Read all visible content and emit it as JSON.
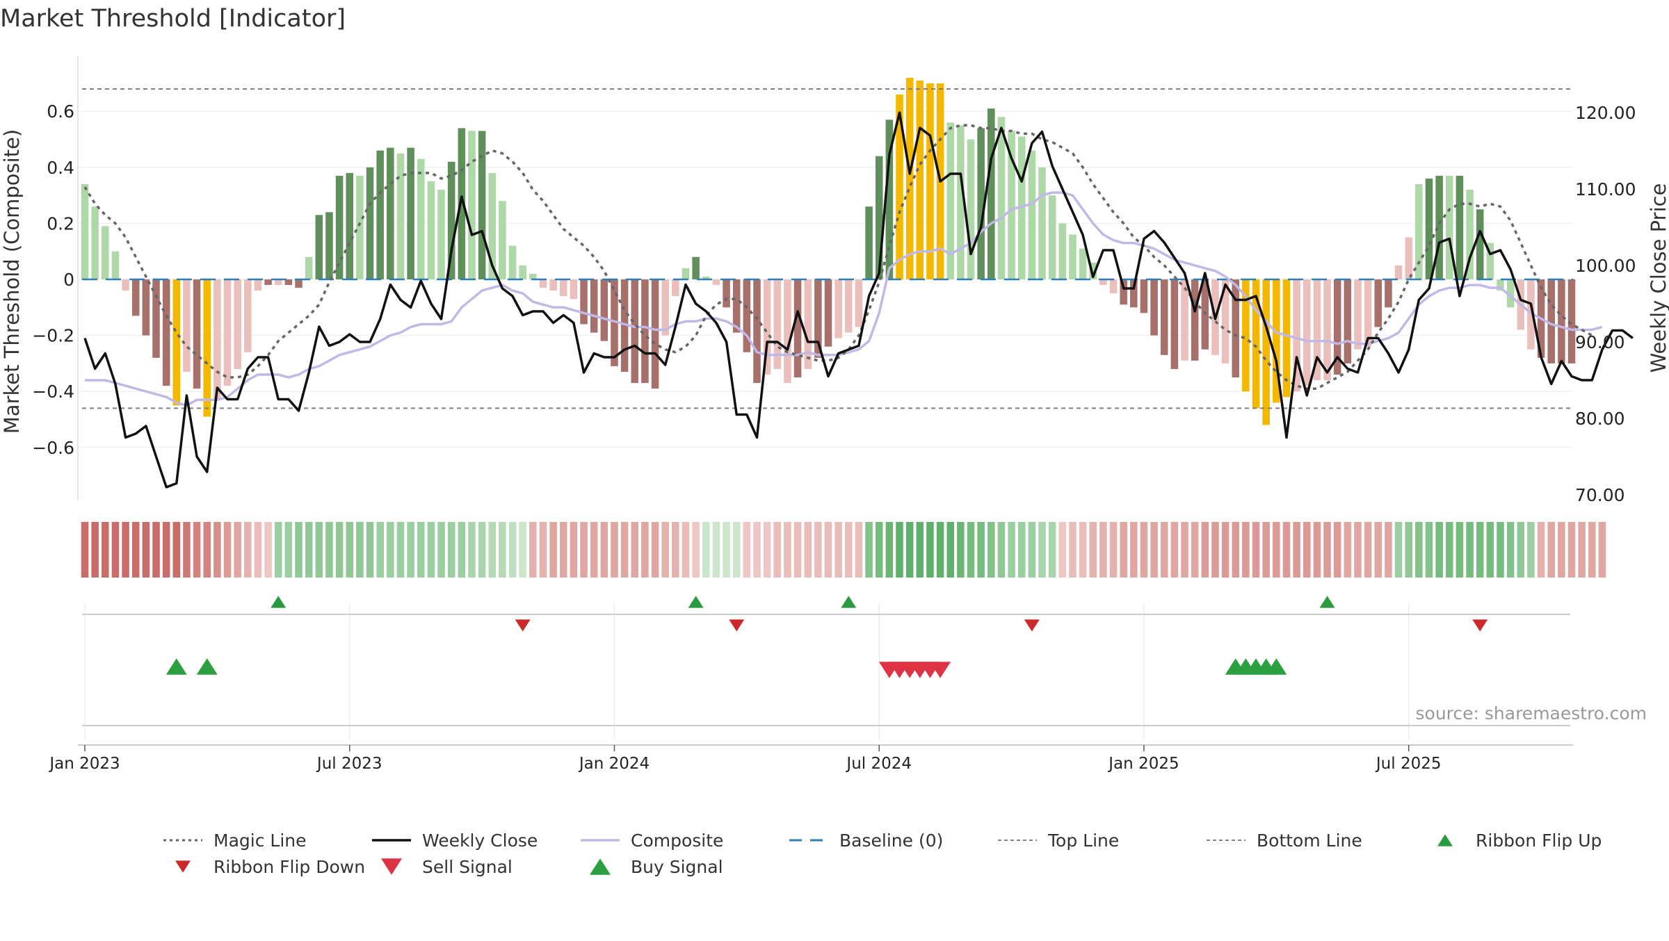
{
  "title": "Market Threshold [Indicator]",
  "source": "source: sharemaestro.com",
  "colors": {
    "dark_green": "#5f8f5a",
    "light_green": "#afd8a8",
    "dark_red": "#a8706b",
    "light_red": "#ebbfbb",
    "gold": "#f5b800",
    "weekly_close": "#111111",
    "composite": "#c0b8e6",
    "magic_line": "#666666",
    "baseline": "#2c7fb8",
    "threshold": "#808080",
    "buy": "#2ca040",
    "sell": "#dd3344",
    "flip_up": "#2a9a3e",
    "flip_down": "#cc2a2a"
  },
  "chart_data": {
    "type": "bar",
    "ylabel": "Market Threshold (Composite)",
    "y2label": "Weekly Close Price",
    "ylim": [
      -0.8,
      0.8
    ],
    "y2lim": [
      68,
      125
    ],
    "yticks": [
      0.6,
      0.4,
      0.2,
      0,
      -0.2,
      -0.4,
      -0.6
    ],
    "ytick_labels": [
      "0.6",
      "0.4",
      "0.2",
      "0",
      "−0.2",
      "−0.4",
      "−0.6"
    ],
    "y2ticks": [
      120,
      110,
      100,
      90,
      80,
      70
    ],
    "y2tick_labels": [
      "120.00",
      "110.00",
      "100.00",
      "90.00",
      "80.00",
      "70.00"
    ],
    "xticks": [
      0,
      26,
      52,
      78,
      104,
      130
    ],
    "xtick_labels": [
      "Jan 2023",
      "Jul 2023",
      "Jan 2024",
      "Jul 2024",
      "Jan 2025",
      "Jul 2025"
    ],
    "top_line": 0.68,
    "bottom_line": -0.46,
    "baseline": 0,
    "composite_bars": [
      0.34,
      0.26,
      0.19,
      0.1,
      -0.04,
      -0.13,
      -0.2,
      -0.28,
      -0.38,
      -0.45,
      -0.33,
      -0.39,
      -0.49,
      -0.43,
      -0.38,
      -0.32,
      -0.26,
      -0.04,
      -0.02,
      -0.02,
      -0.02,
      -0.03,
      0.08,
      0.23,
      0.24,
      0.37,
      0.38,
      0.37,
      0.4,
      0.46,
      0.47,
      0.45,
      0.47,
      0.43,
      0.35,
      0.32,
      0.42,
      0.54,
      0.53,
      0.53,
      0.38,
      0.28,
      0.12,
      0.05,
      0.02,
      -0.03,
      -0.04,
      -0.06,
      -0.07,
      -0.16,
      -0.19,
      -0.22,
      -0.31,
      -0.33,
      -0.37,
      -0.37,
      -0.39,
      -0.2,
      -0.06,
      0.04,
      0.08,
      0.01,
      -0.02,
      -0.1,
      -0.19,
      -0.26,
      -0.37,
      -0.34,
      -0.32,
      -0.37,
      -0.35,
      -0.32,
      -0.28,
      -0.24,
      -0.21,
      -0.19,
      -0.17,
      0.26,
      0.44,
      0.57,
      0.66,
      0.72,
      0.71,
      0.7,
      0.7,
      0.56,
      0.55,
      0.5,
      0.54,
      0.61,
      0.58,
      0.53,
      0.51,
      0.46,
      0.4,
      0.3,
      0.2,
      0.16,
      0.11,
      0.06,
      -0.02,
      -0.05,
      -0.09,
      -0.1,
      -0.12,
      -0.2,
      -0.27,
      -0.32,
      -0.29,
      -0.29,
      -0.25,
      -0.27,
      -0.3,
      -0.35,
      -0.4,
      -0.46,
      -0.52,
      -0.44,
      -0.42,
      -0.4,
      -0.38,
      -0.36,
      -0.36,
      -0.34,
      -0.3,
      -0.25,
      -0.24,
      -0.17,
      -0.1,
      0.05,
      0.15,
      0.34,
      0.36,
      0.37,
      0.37,
      0.37,
      0.32,
      0.25,
      0.13,
      -0.04,
      -0.1,
      -0.18,
      -0.25,
      -0.28,
      -0.3,
      -0.3,
      -0.3
    ],
    "bar_colors": [
      "lg",
      "lg",
      "lg",
      "lg",
      "lr",
      "dr",
      "dr",
      "dr",
      "dr",
      "gold",
      "lr",
      "dr",
      "gold",
      "lr",
      "lr",
      "lr",
      "lr",
      "lr",
      "dr",
      "lr",
      "dr",
      "dr",
      "lg",
      "dg",
      "dg",
      "dg",
      "dg",
      "lg",
      "dg",
      "dg",
      "dg",
      "lg",
      "dg",
      "lg",
      "lg",
      "lg",
      "dg",
      "dg",
      "lg",
      "dg",
      "lg",
      "lg",
      "lg",
      "lg",
      "lg",
      "lr",
      "lr",
      "lr",
      "lr",
      "dr",
      "dr",
      "dr",
      "dr",
      "dr",
      "dr",
      "dr",
      "dr",
      "lr",
      "lr",
      "lg",
      "dg",
      "lg",
      "lr",
      "dr",
      "dr",
      "dr",
      "dr",
      "lr",
      "lr",
      "lr",
      "dr",
      "lr",
      "dr",
      "dr",
      "lr",
      "lr",
      "lr",
      "dg",
      "dg",
      "dg",
      "gold",
      "gold",
      "gold",
      "gold",
      "gold",
      "lg",
      "lg",
      "lg",
      "dg",
      "dg",
      "lg",
      "lg",
      "lg",
      "lg",
      "lg",
      "lg",
      "lg",
      "lg",
      "lg",
      "lg",
      "lr",
      "lr",
      "dr",
      "dr",
      "dr",
      "dr",
      "dr",
      "dr",
      "lr",
      "dr",
      "dr",
      "lr",
      "lr",
      "dr",
      "gold",
      "gold",
      "gold",
      "gold",
      "gold",
      "lr",
      "lr",
      "lr",
      "lr",
      "dr",
      "dr",
      "lr",
      "lr",
      "dr",
      "dr",
      "lr",
      "lr",
      "lg",
      "dg",
      "dg",
      "lg",
      "dg",
      "lg",
      "dg",
      "lg",
      "lg",
      "lg",
      "lr",
      "lr",
      "dr",
      "dr",
      "dr",
      "dr",
      "dr",
      "lr"
    ],
    "series": [
      {
        "name": "Weekly Close",
        "values": [
          90.5,
          86.5,
          88.5,
          84.5,
          77.5,
          78,
          79,
          75,
          71,
          71.5,
          83,
          75,
          73,
          84,
          82.5,
          82.5,
          86.5,
          88,
          88,
          82.5,
          82.5,
          81,
          86,
          92,
          89.5,
          90,
          91,
          90,
          90,
          93,
          97.5,
          95.5,
          94.5,
          98,
          95,
          93,
          102,
          109,
          104,
          104.5,
          100,
          97,
          96,
          93.5,
          94,
          94,
          92.5,
          93.5,
          92.5,
          86,
          88.5,
          88,
          88,
          89,
          89.5,
          88.5,
          88.5,
          87,
          92,
          97.5,
          95,
          94,
          92.5,
          90,
          80.5,
          80.5,
          77.5,
          90,
          90,
          89,
          94,
          90,
          90,
          85.5,
          88.5,
          89,
          89.5,
          96,
          99,
          114.5,
          120,
          112,
          118,
          117,
          111,
          112,
          112,
          101.5,
          105,
          114,
          118,
          114,
          111,
          116,
          117.5,
          113,
          110,
          107,
          104,
          98.5,
          102,
          102,
          97,
          97,
          103.5,
          104.5,
          103,
          101,
          99,
          94,
          99,
          93,
          97.5,
          95.5,
          95.5,
          96,
          92,
          87.5,
          77.5,
          88,
          83,
          88,
          86,
          88,
          86.5,
          86,
          90.5,
          90.5,
          88.5,
          86,
          89,
          95.5,
          97,
          103,
          103.5,
          96,
          101,
          104.5,
          101.5,
          102,
          99.5,
          95.5,
          95,
          88,
          84.5,
          87.5,
          85.5,
          85,
          85,
          89,
          91.5,
          91.5,
          90.5
        ]
      },
      {
        "name": "Composite",
        "values": [
          -0.36,
          -0.36,
          -0.36,
          -0.37,
          -0.38,
          -0.39,
          -0.4,
          -0.41,
          -0.42,
          -0.44,
          -0.45,
          -0.43,
          -0.43,
          -0.43,
          -0.42,
          -0.39,
          -0.36,
          -0.34,
          -0.34,
          -0.34,
          -0.35,
          -0.34,
          -0.32,
          -0.31,
          -0.29,
          -0.27,
          -0.26,
          -0.25,
          -0.24,
          -0.22,
          -0.2,
          -0.19,
          -0.17,
          -0.16,
          -0.16,
          -0.16,
          -0.15,
          -0.1,
          -0.07,
          -0.04,
          -0.03,
          -0.02,
          -0.04,
          -0.05,
          -0.08,
          -0.09,
          -0.1,
          -0.1,
          -0.11,
          -0.12,
          -0.13,
          -0.14,
          -0.15,
          -0.16,
          -0.17,
          -0.17,
          -0.18,
          -0.18,
          -0.16,
          -0.15,
          -0.15,
          -0.14,
          -0.14,
          -0.15,
          -0.17,
          -0.2,
          -0.26,
          -0.27,
          -0.27,
          -0.27,
          -0.27,
          -0.26,
          -0.27,
          -0.27,
          -0.27,
          -0.26,
          -0.25,
          -0.22,
          -0.12,
          0.04,
          0.07,
          0.09,
          0.1,
          0.1,
          0.11,
          0.09,
          0.11,
          0.13,
          0.17,
          0.2,
          0.22,
          0.25,
          0.26,
          0.27,
          0.3,
          0.31,
          0.31,
          0.3,
          0.25,
          0.2,
          0.16,
          0.14,
          0.13,
          0.13,
          0.12,
          0.11,
          0.09,
          0.07,
          0.06,
          0.05,
          0.04,
          0.03,
          0.01,
          -0.02,
          -0.06,
          -0.11,
          -0.15,
          -0.19,
          -0.2,
          -0.21,
          -0.22,
          -0.22,
          -0.22,
          -0.23,
          -0.22,
          -0.23,
          -0.23,
          -0.22,
          -0.21,
          -0.19,
          -0.14,
          -0.09,
          -0.06,
          -0.04,
          -0.03,
          -0.03,
          -0.02,
          -0.02,
          -0.03,
          -0.03,
          -0.06,
          -0.09,
          -0.12,
          -0.14,
          -0.16,
          -0.17,
          -0.18,
          -0.18,
          -0.18,
          -0.17
        ]
      },
      {
        "name": "Magic Line",
        "values": [
          0.33,
          0.27,
          0.23,
          0.2,
          0.15,
          0.08,
          0.01,
          -0.06,
          -0.13,
          -0.19,
          -0.24,
          -0.27,
          -0.3,
          -0.33,
          -0.35,
          -0.35,
          -0.34,
          -0.31,
          -0.27,
          -0.22,
          -0.19,
          -0.16,
          -0.13,
          -0.09,
          -0.01,
          0.06,
          0.13,
          0.2,
          0.27,
          0.31,
          0.34,
          0.37,
          0.38,
          0.38,
          0.38,
          0.36,
          0.37,
          0.39,
          0.42,
          0.44,
          0.46,
          0.45,
          0.42,
          0.38,
          0.32,
          0.28,
          0.23,
          0.18,
          0.15,
          0.12,
          0.08,
          0.03,
          -0.04,
          -0.11,
          -0.16,
          -0.2,
          -0.23,
          -0.25,
          -0.26,
          -0.24,
          -0.2,
          -0.13,
          -0.09,
          -0.07,
          -0.07,
          -0.1,
          -0.14,
          -0.19,
          -0.24,
          -0.26,
          -0.27,
          -0.28,
          -0.29,
          -0.29,
          -0.28,
          -0.25,
          -0.2,
          -0.11,
          -0.01,
          0.12,
          0.24,
          0.33,
          0.41,
          0.46,
          0.5,
          0.54,
          0.55,
          0.55,
          0.54,
          0.54,
          0.53,
          0.53,
          0.52,
          0.52,
          0.5,
          0.49,
          0.47,
          0.45,
          0.4,
          0.34,
          0.29,
          0.24,
          0.2,
          0.15,
          0.12,
          0.08,
          0.05,
          0.01,
          -0.03,
          -0.08,
          -0.12,
          -0.15,
          -0.18,
          -0.2,
          -0.21,
          -0.24,
          -0.29,
          -0.33,
          -0.36,
          -0.38,
          -0.39,
          -0.39,
          -0.37,
          -0.35,
          -0.33,
          -0.29,
          -0.25,
          -0.19,
          -0.14,
          -0.08,
          0.0,
          0.06,
          0.12,
          0.2,
          0.25,
          0.27,
          0.27,
          0.26,
          0.27,
          0.26,
          0.21,
          0.13,
          0.05,
          -0.03,
          -0.09,
          -0.13,
          -0.16,
          -0.18,
          -0.2
        ]
      }
    ],
    "ribbon": [
      -0.5,
      -0.5,
      -0.5,
      -0.5,
      -0.5,
      -0.5,
      -0.5,
      -0.5,
      -0.5,
      -0.5,
      -0.45,
      -0.4,
      -0.4,
      -0.35,
      -0.3,
      -0.25,
      -0.2,
      -0.15,
      -0.1,
      0.3,
      0.3,
      0.35,
      0.35,
      0.35,
      0.35,
      0.35,
      0.35,
      0.35,
      0.35,
      0.3,
      0.3,
      0.3,
      0.3,
      0.3,
      0.3,
      0.3,
      0.3,
      0.3,
      0.25,
      0.25,
      0.2,
      0.2,
      0.15,
      0.1,
      -0.2,
      -0.2,
      -0.25,
      -0.25,
      -0.25,
      -0.25,
      -0.25,
      -0.25,
      -0.25,
      -0.25,
      -0.25,
      -0.25,
      -0.25,
      -0.2,
      -0.2,
      -0.15,
      -0.1,
      0.1,
      0.1,
      0.1,
      0.1,
      -0.1,
      -0.1,
      -0.1,
      -0.15,
      -0.15,
      -0.15,
      -0.15,
      -0.15,
      -0.15,
      -0.15,
      -0.15,
      -0.15,
      0.4,
      0.45,
      0.5,
      0.55,
      0.55,
      0.55,
      0.55,
      0.55,
      0.55,
      0.5,
      0.45,
      0.45,
      0.4,
      0.35,
      0.3,
      0.3,
      0.3,
      0.25,
      0.25,
      -0.1,
      -0.15,
      -0.15,
      -0.2,
      -0.2,
      -0.2,
      -0.25,
      -0.25,
      -0.25,
      -0.25,
      -0.25,
      -0.25,
      -0.25,
      -0.25,
      -0.3,
      -0.3,
      -0.3,
      -0.3,
      -0.3,
      -0.3,
      -0.3,
      -0.3,
      -0.3,
      -0.3,
      -0.3,
      -0.3,
      -0.3,
      -0.3,
      -0.25,
      -0.25,
      -0.25,
      -0.25,
      -0.25,
      0.3,
      0.35,
      0.4,
      0.4,
      0.45,
      0.45,
      0.45,
      0.45,
      0.45,
      0.45,
      0.45,
      0.4,
      0.35,
      0.3,
      -0.2,
      -0.25,
      -0.25,
      -0.25,
      -0.25,
      -0.25,
      -0.25
    ],
    "ribbon_flip_up": [
      19,
      60,
      75,
      122
    ],
    "ribbon_flip_down": [
      43,
      64,
      93,
      137
    ],
    "buy_signals": [
      9,
      12,
      113,
      114,
      115,
      116,
      117
    ],
    "sell_signals": [
      79,
      80,
      81,
      82,
      83,
      84
    ],
    "legend_position": "bottom",
    "legend": [
      {
        "label": "Magic Line",
        "kind": "dotted"
      },
      {
        "label": "Weekly Close",
        "kind": "line"
      },
      {
        "label": "Composite",
        "kind": "composite"
      },
      {
        "label": "Baseline (0)",
        "kind": "dashed"
      },
      {
        "label": "Top Line",
        "kind": "thin-dashed"
      },
      {
        "label": "Bottom Line",
        "kind": "thin-dashed"
      },
      {
        "label": "Ribbon Flip Up",
        "kind": "flip-up"
      },
      {
        "label": "Ribbon Flip Down",
        "kind": "flip-down"
      },
      {
        "label": "Sell Signal",
        "kind": "sell"
      },
      {
        "label": "Buy Signal",
        "kind": "buy"
      }
    ]
  }
}
